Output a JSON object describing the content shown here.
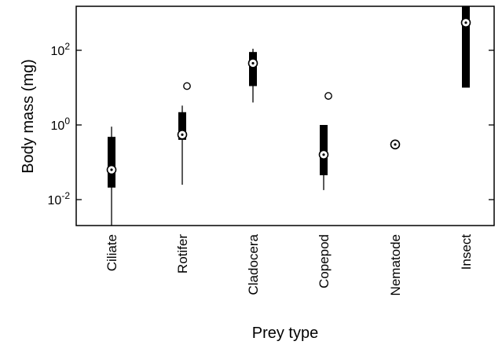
{
  "chart_data": {
    "type": "box",
    "xlabel": "Prey type",
    "ylabel": "Body mass (mg)",
    "y_scale": "log10",
    "ylim": [
      0.0016,
      1600
    ],
    "y_ticks": [
      {
        "value": 100,
        "base": "10",
        "exp": "2"
      },
      {
        "value": 1,
        "base": "10",
        "exp": "0"
      },
      {
        "value": 0.01,
        "base": "10",
        "exp": "-2"
      }
    ],
    "categories": [
      "Ciliate",
      "Rotifer",
      "Cladocera",
      "Copepod",
      "Nematode",
      "Insect"
    ],
    "boxes": [
      {
        "category": "Ciliate",
        "whisker_low": 0.0016,
        "q1": 0.021,
        "median": 0.063,
        "q3": 0.48,
        "whisker_high": 0.9,
        "outliers": []
      },
      {
        "category": "Rotifer",
        "whisker_low": 0.025,
        "q1": 0.4,
        "median": 0.55,
        "q3": 2.2,
        "whisker_high": 3.3,
        "outliers": [
          11
        ]
      },
      {
        "category": "Cladocera",
        "whisker_low": 4,
        "q1": 11,
        "median": 45,
        "q3": 90,
        "whisker_high": 110,
        "outliers": []
      },
      {
        "category": "Copepod",
        "whisker_low": 0.018,
        "q1": 0.045,
        "median": 0.16,
        "q3": 1.0,
        "whisker_high": 1.0,
        "outliers": [
          6
        ]
      },
      {
        "category": "Nematode",
        "whisker_low": 0.3,
        "q1": 0.3,
        "median": 0.3,
        "q3": 0.3,
        "whisker_high": 0.3,
        "outliers": []
      },
      {
        "category": "Insect",
        "whisker_low": 10,
        "q1": 10,
        "median": 550,
        "q3": 1600,
        "whisker_high": 1600,
        "outliers": []
      }
    ],
    "grid": false,
    "legend": "none"
  }
}
